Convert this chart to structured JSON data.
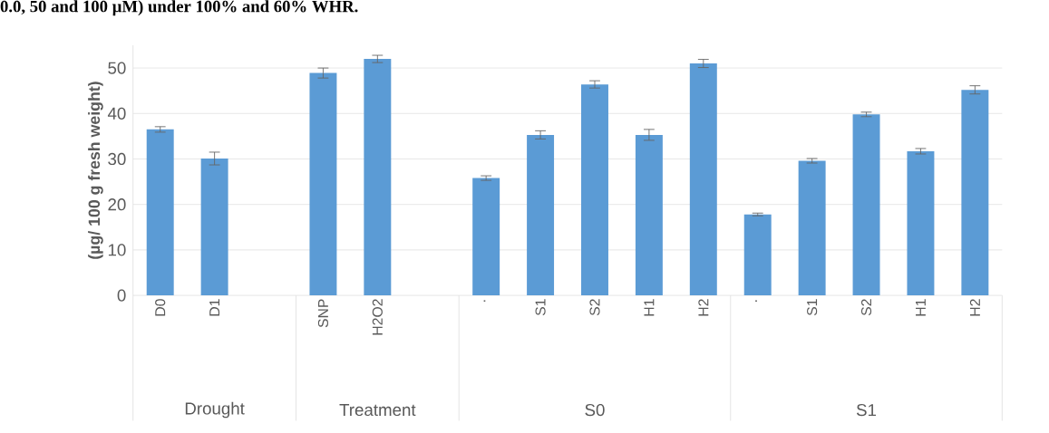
{
  "chart_data": {
    "type": "bar",
    "title": "0.0, 50 and 100 µM) under 100% and 60% WHR.",
    "ylabel": "(µg/ 100 g fresh weight)",
    "categories": [
      "D0",
      "D1",
      null,
      "SNP",
      "H2O2",
      null,
      "·",
      "S1",
      "S2",
      "H1",
      "H2",
      "·",
      "S1",
      "S2",
      "H1",
      "H2"
    ],
    "values": [
      36.5,
      30.1,
      null,
      48.9,
      52.0,
      null,
      25.8,
      35.3,
      46.4,
      35.3,
      51.0,
      17.8,
      29.6,
      39.8,
      31.7,
      45.2
    ],
    "errors": [
      0.6,
      1.4,
      null,
      1.1,
      0.8,
      null,
      0.5,
      0.9,
      0.8,
      1.2,
      0.9,
      0.3,
      0.5,
      0.5,
      0.6,
      0.9
    ],
    "color": "#5b9bd5",
    "ylim": [
      0,
      55
    ],
    "yticks": [
      0,
      10,
      20,
      30,
      40,
      50
    ],
    "grid": "y",
    "annotations": [
      "Drought",
      "Treatment",
      "S0",
      "S1"
    ]
  }
}
